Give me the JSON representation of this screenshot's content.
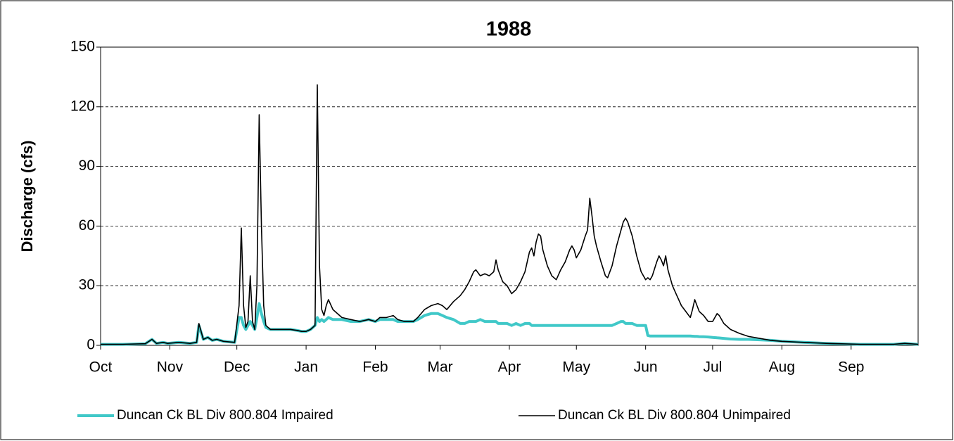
{
  "chart_data": {
    "type": "line",
    "title": "1988",
    "y_label": "Discharge (cfs)",
    "x": [
      0,
      10,
      20,
      23,
      25,
      28,
      30,
      35,
      40,
      43,
      44,
      46,
      48,
      50,
      52,
      55,
      60,
      62,
      63,
      64,
      65,
      66,
      67,
      68,
      69,
      70,
      71,
      72,
      73,
      74,
      76,
      80,
      85,
      88,
      90,
      92,
      94,
      96,
      97,
      98,
      99,
      100,
      101,
      102,
      104,
      108,
      112,
      116,
      120,
      123,
      125,
      128,
      131,
      133,
      136,
      140,
      142,
      145,
      148,
      151,
      153,
      155,
      158,
      161,
      163,
      165,
      167,
      168,
      170,
      172,
      174,
      176,
      177,
      178,
      180,
      182,
      184,
      186,
      188,
      190,
      192,
      193,
      194,
      195,
      196,
      197,
      198,
      200,
      202,
      204,
      206,
      208,
      210,
      211,
      212,
      213,
      215,
      217,
      218,
      219,
      220,
      221,
      222,
      224,
      226,
      227,
      229,
      231,
      233,
      234,
      235,
      236,
      238,
      240,
      242,
      244,
      245,
      246,
      247,
      249,
      250,
      251,
      252,
      253,
      254,
      256,
      258,
      260,
      262,
      264,
      265,
      266,
      267,
      268,
      270,
      272,
      274,
      276,
      277,
      279,
      282,
      286,
      290,
      295,
      300,
      305,
      315,
      325,
      340,
      355,
      360,
      366
    ],
    "series": [
      {
        "name": "Duncan Ck BL Div 800.804 Impaired",
        "color": "#40c8c8",
        "values": [
          0.5,
          0.5,
          0.8,
          3,
          1,
          1.5,
          1,
          1.5,
          1,
          1.5,
          10,
          3,
          4,
          2.5,
          3,
          2,
          1.5,
          14,
          14,
          10,
          8,
          10,
          12,
          10,
          8,
          14,
          21,
          16,
          12,
          9,
          8,
          8,
          8,
          7.5,
          7,
          7,
          8,
          10,
          14,
          12,
          13,
          12,
          13,
          14,
          13,
          13,
          12,
          12,
          13,
          12,
          13,
          13,
          13,
          12,
          12,
          12,
          13,
          15,
          16,
          16,
          15,
          14,
          13,
          11,
          11,
          12,
          12,
          12,
          13,
          12,
          12,
          12,
          12,
          11,
          11,
          11,
          10,
          11,
          10,
          11,
          11,
          10,
          10,
          10,
          10,
          10,
          10,
          10,
          10,
          10,
          10,
          10,
          10,
          10,
          10,
          10,
          10,
          10,
          10,
          10,
          10,
          10,
          10,
          10,
          10,
          10,
          10,
          11,
          12,
          12,
          11,
          11,
          11,
          10,
          10,
          10,
          5,
          4.7,
          4.7,
          4.7,
          4.7,
          4.7,
          4.7,
          4.7,
          4.7,
          4.7,
          4.7,
          4.7,
          4.7,
          4.7,
          4.6,
          4.5,
          4.5,
          4.4,
          4.3,
          4.2,
          4,
          3.8,
          3.7,
          3.5,
          3.2,
          3,
          3,
          2.8,
          2.5,
          2,
          1.5,
          1,
          0.5,
          0.5,
          1,
          0.5
        ]
      },
      {
        "name": "Duncan Ck BL Div 800.804 Unimpaired",
        "color": "#000000",
        "values": [
          0.5,
          0.5,
          0.8,
          3,
          1,
          1.5,
          1,
          1.5,
          1,
          1.5,
          11,
          3,
          4,
          2.5,
          3,
          2,
          1.5,
          20,
          59,
          20,
          9,
          12,
          35,
          12,
          8,
          30,
          116,
          60,
          20,
          10,
          8,
          8,
          8,
          7.5,
          7,
          7,
          8,
          10,
          131,
          40,
          18,
          15,
          20,
          23,
          18,
          14,
          13,
          12,
          13,
          12,
          14,
          14,
          15,
          13,
          12,
          12,
          14,
          18,
          20,
          21,
          20,
          18,
          22,
          25,
          28,
          32,
          37,
          38,
          35,
          36,
          35,
          37,
          43,
          38,
          32,
          30,
          26,
          28,
          32,
          37,
          47,
          49,
          45,
          52,
          56,
          55,
          48,
          40,
          35,
          33,
          38,
          42,
          48,
          50,
          48,
          44,
          48,
          55,
          58,
          74,
          65,
          55,
          50,
          42,
          35,
          34,
          40,
          50,
          58,
          62,
          64,
          62,
          55,
          45,
          37,
          33,
          34,
          33,
          35,
          42,
          45,
          43,
          40,
          45,
          38,
          30,
          25,
          20,
          17,
          14,
          18,
          23,
          20,
          17,
          15,
          12,
          12,
          16,
          15,
          11,
          8,
          6,
          4.5,
          3.5,
          2.5,
          2,
          1.5,
          1,
          0.5,
          0.5,
          1,
          0.5
        ]
      }
    ],
    "xlim": [
      0,
      366
    ],
    "xticks": [
      {
        "value": 0,
        "label": "Oct"
      },
      {
        "value": 31,
        "label": "Nov"
      },
      {
        "value": 61,
        "label": "Dec"
      },
      {
        "value": 92,
        "label": "Jan"
      },
      {
        "value": 123,
        "label": "Feb"
      },
      {
        "value": 152,
        "label": "Mar"
      },
      {
        "value": 183,
        "label": "Apr"
      },
      {
        "value": 213,
        "label": "May"
      },
      {
        "value": 244,
        "label": "Jun"
      },
      {
        "value": 274,
        "label": "Jul"
      },
      {
        "value": 305,
        "label": "Aug"
      },
      {
        "value": 336,
        "label": "Sep"
      }
    ],
    "ylim": [
      0,
      150
    ],
    "yticks": [
      0,
      30,
      60,
      90,
      120,
      150
    ],
    "grid": true,
    "legend": "bottom"
  }
}
